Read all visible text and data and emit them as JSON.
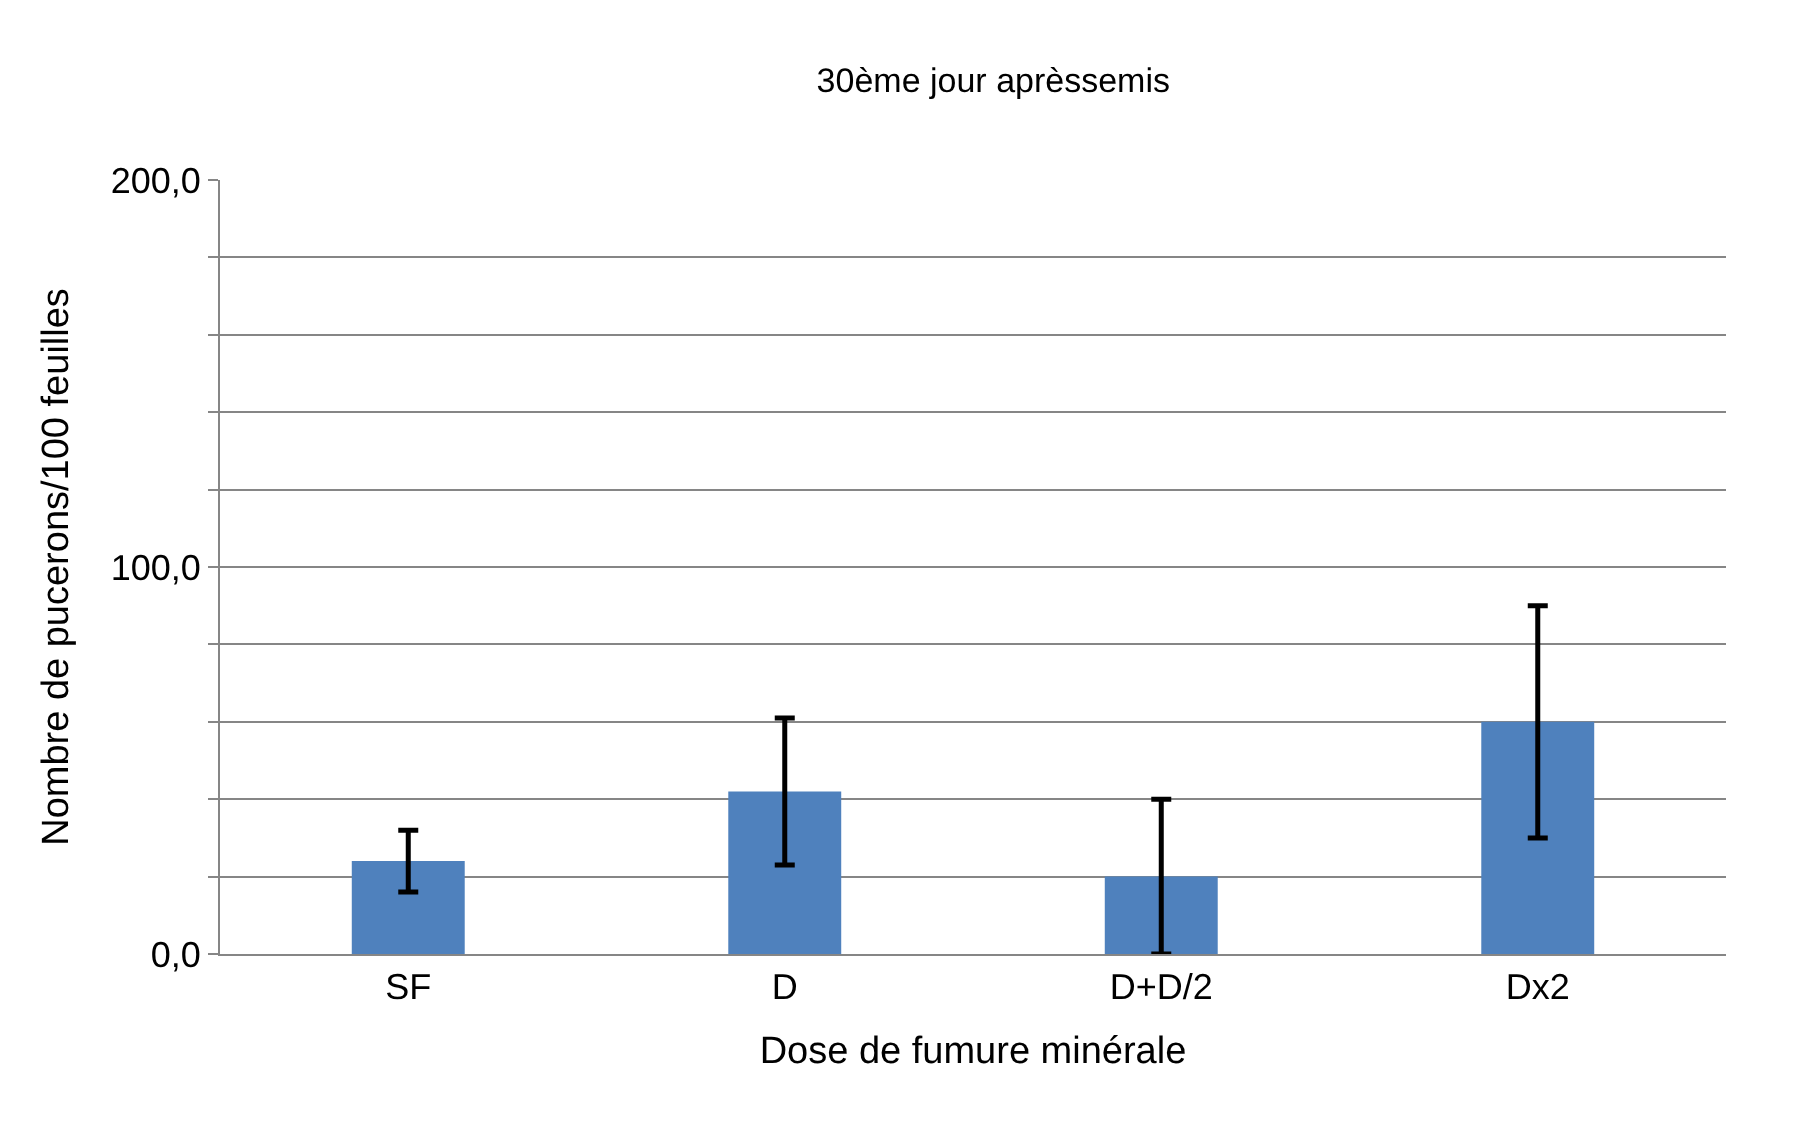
{
  "chart_data": {
    "type": "bar",
    "title": "30ème jour aprèssemis",
    "xlabel": "Dose de fumure minérale",
    "ylabel": "Nombre de pucerons/100 feuilles",
    "categories": [
      "SF",
      "D",
      "D+D/2",
      "Dx2"
    ],
    "series": [
      {
        "color": "#4f81bd",
        "values": [
          24,
          42,
          20,
          60
        ],
        "errors": [
          8,
          19,
          20,
          30
        ]
      }
    ],
    "ylim": [
      0,
      200
    ],
    "yticks": [
      {
        "value": 0,
        "label": "0,0"
      },
      {
        "value": 20,
        "label": null
      },
      {
        "value": 40,
        "label": null
      },
      {
        "value": 60,
        "label": null
      },
      {
        "value": 80,
        "label": null
      },
      {
        "value": 100,
        "label": "100,0"
      },
      {
        "value": 120,
        "label": null
      },
      {
        "value": 140,
        "label": null
      },
      {
        "value": 160,
        "label": null
      },
      {
        "value": 180,
        "label": null
      },
      {
        "value": 200,
        "label": "200,0"
      }
    ],
    "grid": "y"
  }
}
